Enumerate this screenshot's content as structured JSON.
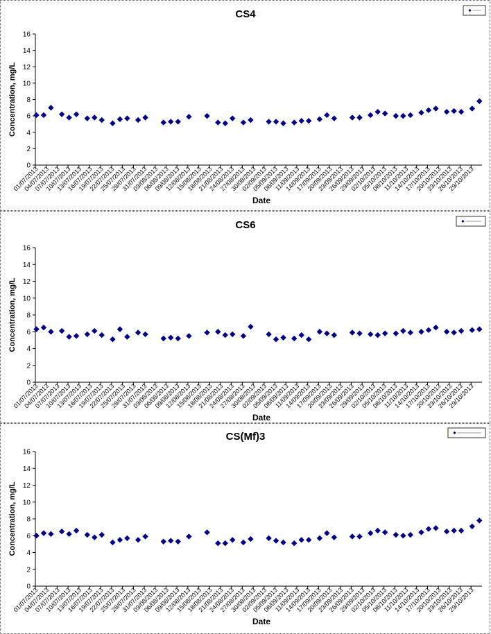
{
  "chart_data": [
    {
      "type": "scatter",
      "title": "CS4",
      "xlabel": "Date",
      "ylabel": "Concentration, mg/L",
      "ylim": [
        0,
        16
      ],
      "yticks": [
        "0",
        "2",
        "4",
        "6",
        "8",
        "10",
        "12",
        "14",
        "16"
      ],
      "grid": false,
      "legend_position": "top-right",
      "marker_color": "#00008B",
      "xticks": [
        "01/07/2013",
        "04/07/2013",
        "07/07/2013",
        "10/07/2013",
        "13/07/2013",
        "16/07/2013",
        "19/07/2013",
        "22/07/2013",
        "25/07/2013",
        "28/07/2013",
        "31/07/2013",
        "03/08/2013",
        "06/08/2013",
        "09/08/2013",
        "12/08/2013",
        "15/08/2013",
        "18/08/2013",
        "21/08/2013",
        "24/08/2013",
        "27/08/2013",
        "30/08/2013",
        "02/09/2013",
        "05/09/2013",
        "08/09/2013",
        "11/09/2013",
        "14/09/2013",
        "17/09/2013",
        "20/09/2013",
        "23/09/2013",
        "26/09/2013",
        "29/09/2013",
        "02/10/2013",
        "05/10/2013",
        "08/10/2013",
        "11/10/2013",
        "14/10/2013",
        "17/10/2013",
        "20/10/2013",
        "23/10/2013",
        "26/10/2013",
        "29/10/2013"
      ],
      "series": [
        {
          "points": [
            [
              "01/07/2013",
              6.1
            ],
            [
              "03/07/2013",
              6.1
            ],
            [
              "05/07/2013",
              7.0
            ],
            [
              "08/07/2013",
              6.2
            ],
            [
              "10/07/2013",
              5.8
            ],
            [
              "12/07/2013",
              6.2
            ],
            [
              "15/07/2013",
              5.7
            ],
            [
              "17/07/2013",
              5.8
            ],
            [
              "19/07/2013",
              5.5
            ],
            [
              "22/07/2013",
              5.1
            ],
            [
              "24/07/2013",
              5.6
            ],
            [
              "26/07/2013",
              5.7
            ],
            [
              "29/07/2013",
              5.5
            ],
            [
              "31/07/2013",
              5.8
            ],
            [
              "05/08/2013",
              5.2
            ],
            [
              "07/08/2013",
              5.3
            ],
            [
              "09/08/2013",
              5.3
            ],
            [
              "12/08/2013",
              5.9
            ],
            [
              "17/08/2013",
              6.0
            ],
            [
              "20/08/2013",
              5.2
            ],
            [
              "22/08/2013",
              5.1
            ],
            [
              "24/08/2013",
              5.7
            ],
            [
              "27/08/2013",
              5.2
            ],
            [
              "29/08/2013",
              5.5
            ],
            [
              "03/09/2013",
              5.3
            ],
            [
              "05/09/2013",
              5.3
            ],
            [
              "07/09/2013",
              5.1
            ],
            [
              "10/09/2013",
              5.2
            ],
            [
              "12/09/2013",
              5.4
            ],
            [
              "14/09/2013",
              5.4
            ],
            [
              "17/09/2013",
              5.6
            ],
            [
              "19/09/2013",
              6.1
            ],
            [
              "21/09/2013",
              5.7
            ],
            [
              "26/09/2013",
              5.8
            ],
            [
              "28/09/2013",
              5.8
            ],
            [
              "01/10/2013",
              6.1
            ],
            [
              "03/10/2013",
              6.5
            ],
            [
              "05/10/2013",
              6.3
            ],
            [
              "08/10/2013",
              6.0
            ],
            [
              "10/10/2013",
              6.0
            ],
            [
              "12/10/2013",
              6.1
            ],
            [
              "15/10/2013",
              6.4
            ],
            [
              "17/10/2013",
              6.7
            ],
            [
              "19/10/2013",
              6.9
            ],
            [
              "22/10/2013",
              6.5
            ],
            [
              "24/10/2013",
              6.6
            ],
            [
              "26/10/2013",
              6.5
            ],
            [
              "29/10/2013",
              6.9
            ],
            [
              "31/10/2013",
              7.8
            ]
          ]
        }
      ]
    },
    {
      "type": "scatter",
      "title": "CS6",
      "xlabel": "Date",
      "ylabel": "Concentration, mg/L",
      "ylim": [
        0,
        16
      ],
      "yticks": [
        "0",
        "2",
        "4",
        "6",
        "8",
        "10",
        "12",
        "14",
        "16"
      ],
      "grid": false,
      "legend_position": "top-right",
      "marker_color": "#00008B",
      "xticks": [
        "01/07/2013",
        "04/07/2013",
        "07/07/2013",
        "10/07/2013",
        "13/07/2013",
        "16/07/2013",
        "19/07/2013",
        "22/07/2013",
        "25/07/2013",
        "28/07/2013",
        "31/07/2013",
        "03/08/2013",
        "06/08/2013",
        "09/08/2013",
        "12/08/2013",
        "15/08/2013",
        "18/08/2013",
        "21/08/2013",
        "24/08/2013",
        "27/08/2013",
        "30/08/2013",
        "02/09/2013",
        "05/09/2013",
        "08/09/2013",
        "11/09/2013",
        "14/09/2013",
        "17/09/2013",
        "20/09/2013",
        "23/09/2013",
        "26/09/2013",
        "29/09/2013",
        "02/10/2013",
        "05/10/2013",
        "08/10/2013",
        "11/10/2013",
        "14/10/2013",
        "17/10/2013",
        "20/10/2013",
        "23/10/2013",
        "26/10/2013",
        "29/10/2013"
      ],
      "series": [
        {
          "points": [
            [
              "01/07/2013",
              6.3
            ],
            [
              "03/07/2013",
              6.5
            ],
            [
              "05/07/2013",
              6.0
            ],
            [
              "08/07/2013",
              6.1
            ],
            [
              "10/07/2013",
              5.4
            ],
            [
              "12/07/2013",
              5.5
            ],
            [
              "15/07/2013",
              5.7
            ],
            [
              "17/07/2013",
              6.1
            ],
            [
              "19/07/2013",
              5.6
            ],
            [
              "22/07/2013",
              5.1
            ],
            [
              "24/07/2013",
              6.3
            ],
            [
              "26/07/2013",
              5.4
            ],
            [
              "29/07/2013",
              5.9
            ],
            [
              "31/07/2013",
              5.7
            ],
            [
              "05/08/2013",
              5.2
            ],
            [
              "07/08/2013",
              5.3
            ],
            [
              "09/08/2013",
              5.2
            ],
            [
              "12/08/2013",
              5.5
            ],
            [
              "17/08/2013",
              5.9
            ],
            [
              "20/08/2013",
              6.0
            ],
            [
              "22/08/2013",
              5.6
            ],
            [
              "24/08/2013",
              5.7
            ],
            [
              "27/08/2013",
              5.5
            ],
            [
              "29/08/2013",
              6.6
            ],
            [
              "03/09/2013",
              5.7
            ],
            [
              "05/09/2013",
              5.1
            ],
            [
              "07/09/2013",
              5.3
            ],
            [
              "10/09/2013",
              5.2
            ],
            [
              "12/09/2013",
              5.6
            ],
            [
              "14/09/2013",
              5.1
            ],
            [
              "17/09/2013",
              6.0
            ],
            [
              "19/09/2013",
              5.8
            ],
            [
              "21/09/2013",
              5.6
            ],
            [
              "26/09/2013",
              5.9
            ],
            [
              "28/09/2013",
              5.8
            ],
            [
              "01/10/2013",
              5.7
            ],
            [
              "03/10/2013",
              5.6
            ],
            [
              "05/10/2013",
              5.8
            ],
            [
              "08/10/2013",
              5.8
            ],
            [
              "10/10/2013",
              6.1
            ],
            [
              "12/10/2013",
              5.9
            ],
            [
              "15/10/2013",
              6.0
            ],
            [
              "17/10/2013",
              6.2
            ],
            [
              "19/10/2013",
              6.5
            ],
            [
              "22/10/2013",
              6.0
            ],
            [
              "24/10/2013",
              5.9
            ],
            [
              "26/10/2013",
              6.1
            ],
            [
              "29/10/2013",
              6.2
            ],
            [
              "31/10/2013",
              6.3
            ]
          ]
        }
      ]
    },
    {
      "type": "scatter",
      "title": "CS(Mf)3",
      "xlabel": "Date",
      "ylabel": "Concentration, mg/L",
      "ylim": [
        0,
        16
      ],
      "yticks": [
        "0",
        "2",
        "4",
        "6",
        "8",
        "10",
        "12",
        "14",
        "16"
      ],
      "grid": false,
      "legend_position": "top-right",
      "marker_color": "#00008B",
      "xticks": [
        "01/07/2013",
        "04/07/2013",
        "07/07/2013",
        "10/07/2013",
        "13/07/2013",
        "16/07/2013",
        "19/07/2013",
        "22/07/2013",
        "25/07/2013",
        "28/07/2013",
        "31/07/2013",
        "03/08/2013",
        "06/08/2013",
        "09/08/2013",
        "12/08/2013",
        "15/08/2013",
        "18/08/2013",
        "21/08/2013",
        "24/08/2013",
        "27/08/2013",
        "30/08/2013",
        "02/09/2013",
        "05/09/2013",
        "08/09/2013",
        "11/09/2013",
        "14/09/2013",
        "17/09/2013",
        "20/09/2013",
        "23/09/2013",
        "26/09/2013",
        "29/09/2013",
        "02/10/2013",
        "05/10/2013",
        "08/10/2013",
        "11/10/2013",
        "14/10/2013",
        "17/10/2013",
        "20/10/2013",
        "23/10/2013",
        "26/10/2013",
        "29/10/2013"
      ],
      "series": [
        {
          "points": [
            [
              "01/07/2013",
              6.0
            ],
            [
              "03/07/2013",
              6.3
            ],
            [
              "05/07/2013",
              6.2
            ],
            [
              "08/07/2013",
              6.5
            ],
            [
              "10/07/2013",
              6.2
            ],
            [
              "12/07/2013",
              6.6
            ],
            [
              "15/07/2013",
              6.1
            ],
            [
              "17/07/2013",
              5.8
            ],
            [
              "19/07/2013",
              6.1
            ],
            [
              "22/07/2013",
              5.2
            ],
            [
              "24/07/2013",
              5.5
            ],
            [
              "26/07/2013",
              5.7
            ],
            [
              "29/07/2013",
              5.5
            ],
            [
              "31/07/2013",
              5.9
            ],
            [
              "05/08/2013",
              5.3
            ],
            [
              "07/08/2013",
              5.4
            ],
            [
              "09/08/2013",
              5.3
            ],
            [
              "12/08/2013",
              5.9
            ],
            [
              "17/08/2013",
              6.4
            ],
            [
              "20/08/2013",
              5.1
            ],
            [
              "22/08/2013",
              5.1
            ],
            [
              "24/08/2013",
              5.5
            ],
            [
              "27/08/2013",
              5.2
            ],
            [
              "29/08/2013",
              5.6
            ],
            [
              "03/09/2013",
              5.7
            ],
            [
              "05/09/2013",
              5.4
            ],
            [
              "07/09/2013",
              5.2
            ],
            [
              "10/09/2013",
              5.1
            ],
            [
              "12/09/2013",
              5.5
            ],
            [
              "14/09/2013",
              5.5
            ],
            [
              "17/09/2013",
              5.7
            ],
            [
              "19/09/2013",
              6.3
            ],
            [
              "21/09/2013",
              5.8
            ],
            [
              "26/09/2013",
              5.9
            ],
            [
              "28/09/2013",
              5.9
            ],
            [
              "01/10/2013",
              6.3
            ],
            [
              "03/10/2013",
              6.6
            ],
            [
              "05/10/2013",
              6.4
            ],
            [
              "08/10/2013",
              6.1
            ],
            [
              "10/10/2013",
              6.0
            ],
            [
              "12/10/2013",
              6.1
            ],
            [
              "15/10/2013",
              6.4
            ],
            [
              "17/10/2013",
              6.8
            ],
            [
              "19/10/2013",
              6.9
            ],
            [
              "22/10/2013",
              6.5
            ],
            [
              "24/10/2013",
              6.6
            ],
            [
              "26/10/2013",
              6.6
            ],
            [
              "29/10/2013",
              7.1
            ],
            [
              "31/10/2013",
              7.8
            ]
          ]
        }
      ]
    }
  ]
}
